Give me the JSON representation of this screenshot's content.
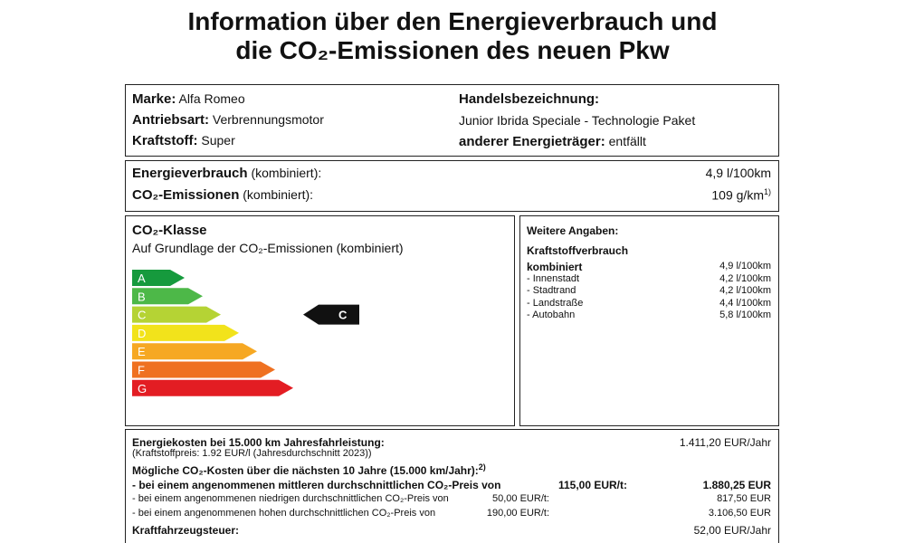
{
  "header": {
    "title": [
      "Information über den Energieverbrauch und",
      "die CO₂-Emissionen des neuen Pkw"
    ]
  },
  "vehicle": {
    "left": [
      [
        "Marke:",
        "Alfa Romeo"
      ],
      [
        "Antriebsart:",
        "Verbrennungsmotor"
      ],
      [
        "Kraftstoff:",
        "Super"
      ]
    ],
    "trade_name_label": "Handelsbezeichnung:",
    "trade_name": "Junior Ibrida Speciale - Technologie Paket",
    "other_energy_label": "anderer Energieträger:",
    "other_energy": "entfällt"
  },
  "consumption": {
    "rows": [
      {
        "label": "Energieverbrauch",
        "note": "(kombiniert):",
        "value": "4,9 l/100km"
      },
      {
        "label": "CO₂-Emissionen",
        "note": "(kombiniert):",
        "value": "109 g/km",
        "footnote": "1)"
      }
    ]
  },
  "co2_class": {
    "title": "CO₂-Klasse",
    "subtitle": "Auf Grundlage der CO₂-Emissionen (kombiniert)",
    "classes": [
      "A",
      "B",
      "C",
      "D",
      "E",
      "F",
      "G"
    ],
    "vehicle_class": "C"
  },
  "further": {
    "title": "Weitere Angaben:",
    "subtitle": "Kraftstoffverbrauch",
    "rows": [
      [
        "kombiniert",
        "4,9 l/100km"
      ],
      [
        "- Innenstadt",
        "4,2 l/100km"
      ],
      [
        "- Stadtrand",
        "4,2 l/100km"
      ],
      [
        "- Landstraße",
        "4,4 l/100km"
      ],
      [
        "- Autobahn",
        "5,8 l/100km"
      ]
    ]
  },
  "costs": {
    "energy_label": "Energiekosten bei 15.000 km Jahresfahrleistung:",
    "energy_value": "1.411,20 EUR/Jahr",
    "fuel_price_note": "(Kraftstoffpreis: 1.92 EUR/l (Jahresdurchschnitt 2023))",
    "co2_heading": "Mögliche CO₂-Kosten über die nächsten 10 Jahre (15.000 km/Jahr):",
    "co2_footnote": "2)",
    "scenarios": [
      [
        "- bei einem angenommenen mittleren durchschnittlichen CO₂-Preis von",
        "115,00 EUR/t:",
        "1.880,25 EUR"
      ],
      [
        "- bei einem angenommenen niedrigen durchschnittlichen CO₂-Preis von",
        "50,00 EUR/t:",
        "817,50 EUR"
      ],
      [
        "- bei einem angenommenen hohen durchschnittlichen CO₂-Preis von",
        "190,00 EUR/t:",
        "3.106,50 EUR"
      ]
    ],
    "tax_label": "Kraftfahrzeugsteuer:",
    "tax_value": "52,00 EUR/Jahr"
  }
}
